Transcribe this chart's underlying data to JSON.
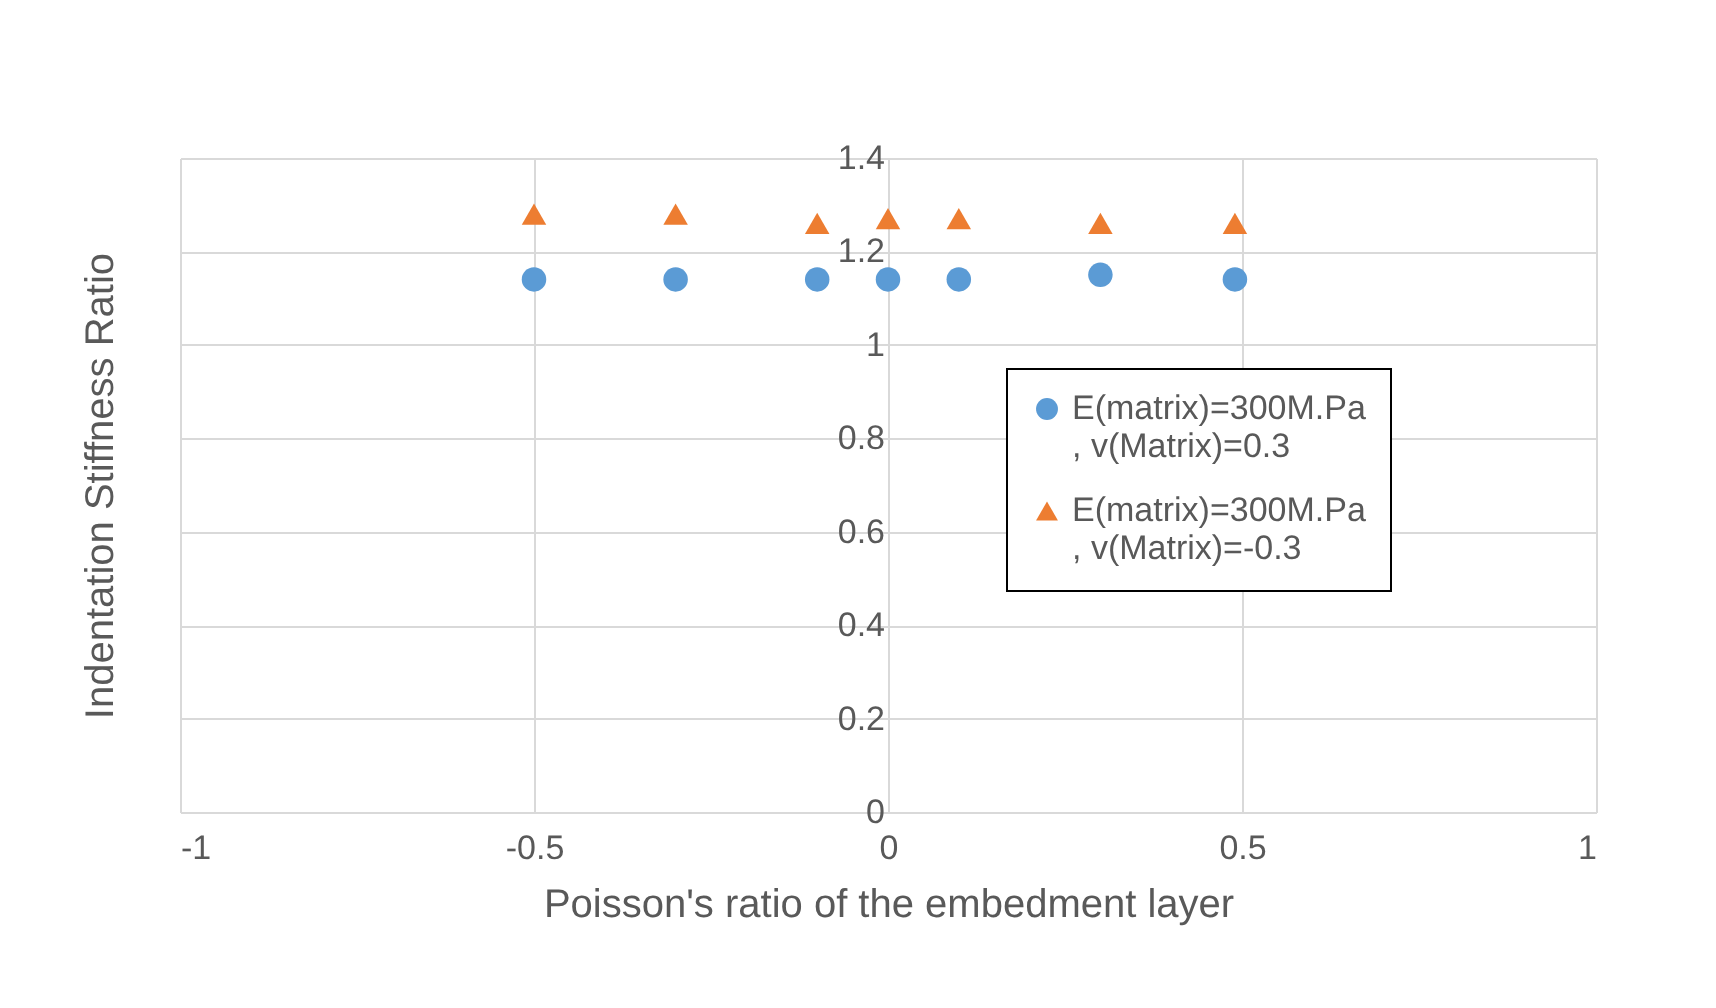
{
  "chart_data": {
    "type": "scatter",
    "xlabel": "Poisson's ratio of the embedment layer",
    "ylabel": "Indentation Stiffness Ratio",
    "x": [
      -0.5,
      -0.3,
      -0.1,
      0,
      0.1,
      0.3,
      0.49
    ],
    "series": [
      {
        "name": "E(matrix)=300M.Pa\n, v(Matrix)=0.3",
        "color": "#5b9bd5",
        "marker": "circle",
        "values": [
          1.14,
          1.14,
          1.14,
          1.14,
          1.14,
          1.15,
          1.14
        ]
      },
      {
        "name": "E(matrix)=300M.Pa\n, v(Matrix)=-0.3",
        "color": "#ed7d31",
        "marker": "triangle",
        "values": [
          1.28,
          1.28,
          1.26,
          1.27,
          1.27,
          1.26,
          1.26
        ]
      }
    ],
    "xlim": [
      -1,
      1
    ],
    "xticks": [
      -1,
      -0.5,
      0,
      0.5,
      1
    ],
    "ylim": [
      0,
      1.4
    ],
    "yticks": [
      0,
      0.2,
      0.4,
      0.6,
      0.8,
      1,
      1.2,
      1.4
    ],
    "grid": true,
    "legend": "right"
  }
}
